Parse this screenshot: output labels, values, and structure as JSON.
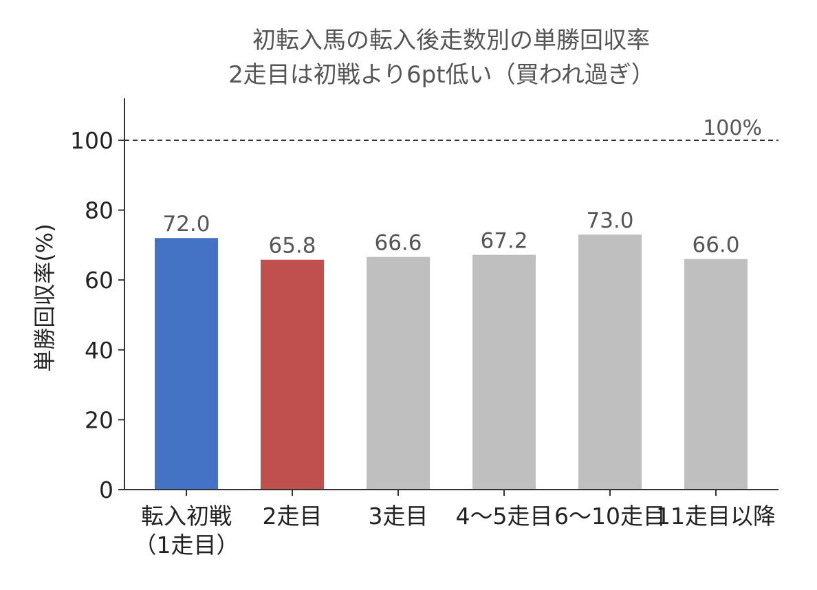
{
  "chart_data": {
    "type": "bar",
    "title": "初転入馬の転入後走数別の単勝回収率",
    "subtitle": "2走目は初戦より6pt低い（買われ過ぎ）",
    "xlabel": "",
    "ylabel": "単勝回収率(%)",
    "ylim": [
      0,
      112
    ],
    "yticks": [
      0,
      20,
      40,
      60,
      80,
      100
    ],
    "categories": [
      [
        "転入初戦",
        "（1走目）"
      ],
      [
        "2走目"
      ],
      [
        "3走目"
      ],
      [
        "4〜5走目"
      ],
      [
        "6〜10走目"
      ],
      [
        "11走目以降"
      ]
    ],
    "values": [
      72.0,
      65.8,
      66.6,
      67.2,
      73.0,
      66.0
    ],
    "data_labels": [
      "72.0",
      "65.8",
      "66.6",
      "67.2",
      "73.0",
      "66.0"
    ],
    "colors": [
      "#4472C4",
      "#C0504D",
      "#BFBFBF",
      "#BFBFBF",
      "#BFBFBF",
      "#BFBFBF"
    ],
    "reference_line": {
      "value": 100,
      "label": "100%",
      "style": "dashed",
      "color": "#333333"
    },
    "grid": false,
    "legend": "none"
  }
}
